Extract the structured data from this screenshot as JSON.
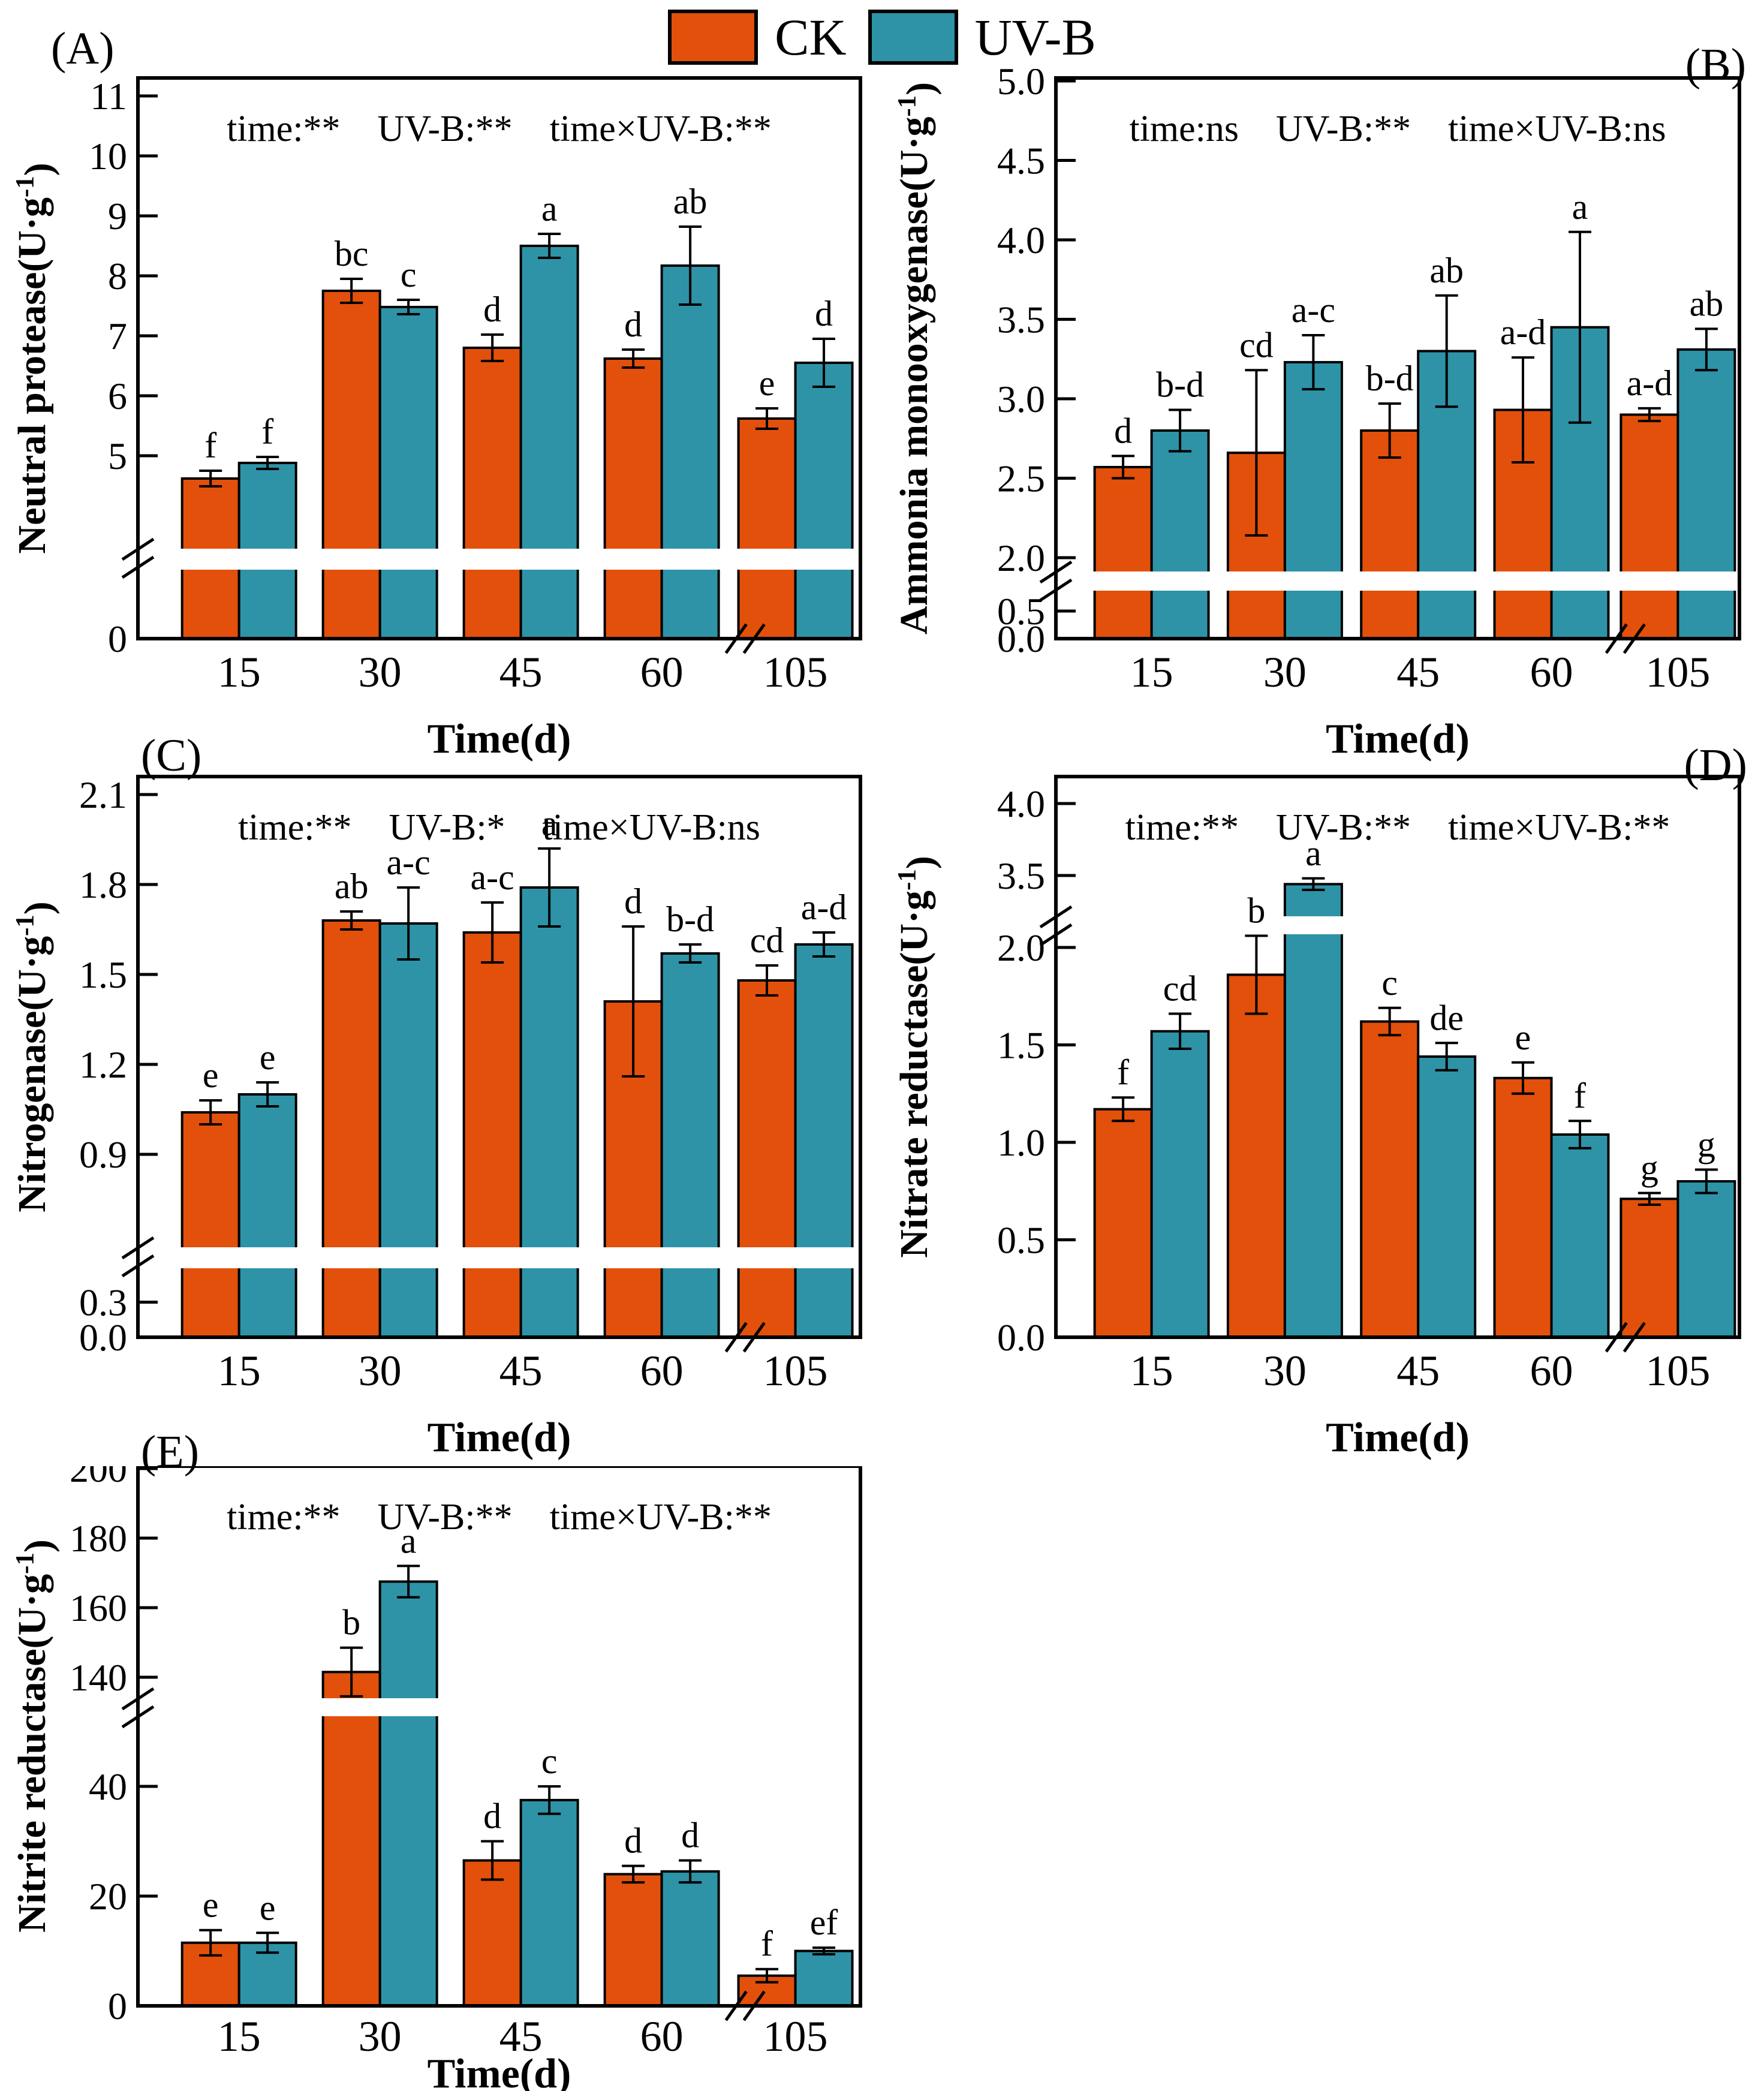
{
  "legend": {
    "items": [
      {
        "label": "CK",
        "color": "#E2500B"
      },
      {
        "label": "UV-B",
        "color": "#2E93A7"
      }
    ]
  },
  "colors": {
    "ck": "#E2500B",
    "uvb": "#2E93A7",
    "axis": "#000000",
    "background": "#FFFFFF"
  },
  "chart_data": [
    {
      "id": "A",
      "type": "bar",
      "panel_label": "(A)",
      "stats_tokens": [
        "time:**",
        "UV-B:**",
        "time×UV-B:**"
      ],
      "ylabel": "Neutral protease(U·g⁻¹)",
      "xlabel": "Time(d)",
      "categories": [
        "15",
        "30",
        "45",
        "60",
        "105"
      ],
      "x_break_after": "60",
      "y_ticks_lower": [
        {
          "v": 0,
          "label": "0"
        }
      ],
      "y_ticks_upper": [
        {
          "v": 5,
          "label": "5"
        },
        {
          "v": 6,
          "label": "6"
        },
        {
          "v": 7,
          "label": "7"
        },
        {
          "v": 8,
          "label": "8"
        },
        {
          "v": 9,
          "label": "9"
        },
        {
          "v": 10,
          "label": "10"
        },
        {
          "v": 11,
          "label": "11"
        }
      ],
      "ylim_segments": [
        [
          0,
          4.3
        ],
        [
          4.3,
          11.4
        ]
      ],
      "series": [
        {
          "name": "CK",
          "values": [
            4.62,
            7.75,
            6.8,
            6.62,
            5.62
          ],
          "errors": [
            0.13,
            0.2,
            0.22,
            0.15,
            0.17
          ],
          "sig_letters": [
            "f",
            "bc",
            "d",
            "d",
            "e"
          ]
        },
        {
          "name": "UV-B",
          "values": [
            4.88,
            7.48,
            8.5,
            8.17,
            6.55
          ],
          "errors": [
            0.1,
            0.12,
            0.2,
            0.65,
            0.4
          ],
          "sig_letters": [
            "f",
            "c",
            "a",
            "ab",
            "d"
          ]
        }
      ]
    },
    {
      "id": "B",
      "type": "bar",
      "panel_label": "(B)",
      "stats_tokens": [
        "time:ns",
        "UV-B:**",
        "time×UV-B:ns"
      ],
      "ylabel": "Ammonia monooxygenase(U·g⁻¹)",
      "xlabel": "Time(d)",
      "categories": [
        "15",
        "30",
        "45",
        "60",
        "105"
      ],
      "x_break_after": "60",
      "y_ticks_lower": [
        {
          "v": 0,
          "label": "0.0"
        },
        {
          "v": 0.5,
          "label": "0.5"
        }
      ],
      "y_ticks_upper": [
        {
          "v": 2.0,
          "label": "2.0"
        },
        {
          "v": 2.5,
          "label": "2.5"
        },
        {
          "v": 3.0,
          "label": "3.0"
        },
        {
          "v": 3.5,
          "label": "3.5"
        },
        {
          "v": 4.0,
          "label": "4.0"
        },
        {
          "v": 4.5,
          "label": "4.5"
        },
        {
          "v": 5.0,
          "label": "5.0"
        }
      ],
      "ylim_segments": [
        [
          0,
          0.8
        ],
        [
          1.9,
          5.0
        ]
      ],
      "series": [
        {
          "name": "CK",
          "values": [
            2.57,
            2.66,
            2.8,
            2.93,
            2.9
          ],
          "errors": [
            0.07,
            0.52,
            0.17,
            0.33,
            0.04
          ],
          "sig_letters": [
            "d",
            "cd",
            "b-d",
            "a-d",
            "a-d"
          ]
        },
        {
          "name": "UV-B",
          "values": [
            2.8,
            3.23,
            3.3,
            3.45,
            3.31
          ],
          "errors": [
            0.13,
            0.17,
            0.35,
            0.6,
            0.13
          ],
          "sig_letters": [
            "b-d",
            "a-c",
            "ab",
            "a",
            "ab"
          ]
        }
      ]
    },
    {
      "id": "C",
      "type": "bar",
      "panel_label": "(C)",
      "stats_tokens": [
        "time:**",
        "UV-B:*",
        "time×UV-B:ns"
      ],
      "ylabel": "Nitrogenase(U·g⁻¹)",
      "xlabel": "Time(d)",
      "categories": [
        "15",
        "30",
        "45",
        "60",
        "105"
      ],
      "x_break_after": "60",
      "y_ticks_lower": [
        {
          "v": 0,
          "label": "0.0"
        },
        {
          "v": 0.3,
          "label": "0.3"
        }
      ],
      "y_ticks_upper": [
        {
          "v": 0.9,
          "label": "0.9"
        },
        {
          "v": 1.2,
          "label": "1.2"
        },
        {
          "v": 1.5,
          "label": "1.5"
        },
        {
          "v": 1.8,
          "label": "1.8"
        },
        {
          "v": 2.1,
          "label": "2.1"
        }
      ],
      "ylim_segments": [
        [
          0,
          0.45
        ],
        [
          0.6,
          2.2
        ]
      ],
      "series": [
        {
          "name": "CK",
          "values": [
            1.04,
            1.68,
            1.64,
            1.41,
            1.48
          ],
          "errors": [
            0.04,
            0.03,
            0.1,
            0.25,
            0.05
          ],
          "sig_letters": [
            "e",
            "ab",
            "a-c",
            "d",
            "cd"
          ]
        },
        {
          "name": "UV-B",
          "values": [
            1.1,
            1.67,
            1.79,
            1.57,
            1.6
          ],
          "errors": [
            0.04,
            0.12,
            0.13,
            0.03,
            0.04
          ],
          "sig_letters": [
            "e",
            "a-c",
            "a",
            "b-d",
            "a-d"
          ]
        }
      ]
    },
    {
      "id": "D",
      "type": "bar",
      "panel_label": "(D)",
      "stats_tokens": [
        "time:**",
        "UV-B:**",
        "time×UV-B:**"
      ],
      "ylabel": "Nitrate reductase(U·g⁻¹)",
      "xlabel": "Time(d)",
      "categories": [
        "15",
        "30",
        "45",
        "60",
        "105"
      ],
      "x_break_after": "60",
      "y_ticks_lower": [
        {
          "v": 0,
          "label": "0.0"
        },
        {
          "v": 0.5,
          "label": "0.5"
        },
        {
          "v": 1.0,
          "label": "1.0"
        },
        {
          "v": 1.5,
          "label": "1.5"
        },
        {
          "v": 2.0,
          "label": "2.0"
        }
      ],
      "y_ticks_upper": [
        {
          "v": 3.5,
          "label": "3.5"
        },
        {
          "v": 4.0,
          "label": "4.0"
        }
      ],
      "ylim_segments": [
        [
          0,
          2.1
        ],
        [
          3.2,
          4.0
        ]
      ],
      "series": [
        {
          "name": "CK",
          "values": [
            1.17,
            1.86,
            1.62,
            1.33,
            0.71
          ],
          "errors": [
            0.06,
            0.2,
            0.07,
            0.08,
            0.03
          ],
          "sig_letters": [
            "f",
            "b",
            "c",
            "e",
            "g"
          ]
        },
        {
          "name": "UV-B",
          "values": [
            1.57,
            3.44,
            1.44,
            1.04,
            0.8
          ],
          "errors": [
            0.09,
            0.04,
            0.07,
            0.07,
            0.06
          ],
          "sig_letters": [
            "cd",
            "a",
            "de",
            "f",
            "g"
          ]
        }
      ]
    },
    {
      "id": "E",
      "type": "bar",
      "panel_label": "(E)",
      "stats_tokens": [
        "time:**",
        "UV-B:**",
        "time×UV-B:**"
      ],
      "ylabel": "Nitrite reductase(U·g⁻¹)",
      "xlabel": "Time(d)",
      "categories": [
        "15",
        "30",
        "45",
        "60",
        "105"
      ],
      "x_break_after": "60",
      "y_ticks_lower": [
        {
          "v": 0,
          "label": "0"
        },
        {
          "v": 20,
          "label": "20"
        },
        {
          "v": 40,
          "label": "40"
        }
      ],
      "y_ticks_upper": [
        {
          "v": 140,
          "label": "140"
        },
        {
          "v": 160,
          "label": "160"
        },
        {
          "v": 180,
          "label": "180"
        },
        {
          "v": 200,
          "label": "200"
        }
      ],
      "ylim_segments": [
        [
          0,
          48
        ],
        [
          132,
          200
        ]
      ],
      "series": [
        {
          "name": "CK",
          "values": [
            11.5,
            141.5,
            26.5,
            24.0,
            5.5
          ],
          "errors": [
            2.3,
            7.0,
            3.5,
            1.5,
            1.2
          ],
          "sig_letters": [
            "e",
            "b",
            "d",
            "d",
            "f"
          ]
        },
        {
          "name": "UV-B",
          "values": [
            11.5,
            167.5,
            37.5,
            24.5,
            10.0
          ],
          "errors": [
            1.8,
            4.5,
            2.5,
            2.0,
            0.6
          ],
          "sig_letters": [
            "e",
            "a",
            "c",
            "d",
            "ef"
          ]
        }
      ]
    }
  ]
}
